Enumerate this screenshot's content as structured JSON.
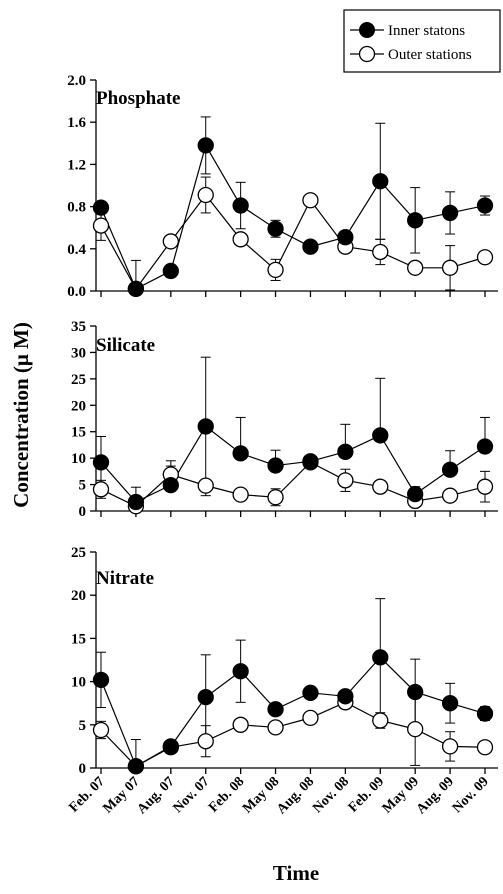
{
  "figure": {
    "ylabel": "Concentration (μ M)",
    "xlabel": "Time"
  },
  "legend": {
    "inner_label": "Inner statons",
    "outer_label": "Outer stations"
  },
  "chart_data": [
    {
      "type": "line",
      "title": "Phosphate",
      "categories": [
        "Feb. 07",
        "May 07",
        "Aug. 07",
        "Nov. 07",
        "Feb. 08",
        "May 08",
        "Aug. 08",
        "Nov. 08",
        "Feb. 09",
        "May 09",
        "Aug. 09",
        "Nov. 09"
      ],
      "ylim": [
        0,
        2.0
      ],
      "yticks": [
        "0.0",
        "0.4",
        "0.8",
        "1.2",
        "1.6",
        "2.0"
      ],
      "series": [
        {
          "name": "Inner statons",
          "fill": "#000000",
          "values": [
            0.79,
            0.02,
            0.19,
            1.38,
            0.81,
            0.59,
            0.42,
            0.51,
            1.04,
            0.67,
            0.74,
            0.81
          ],
          "err": [
            0,
            0,
            0,
            0.27,
            0.22,
            0.08,
            0,
            0.04,
            0.55,
            0.31,
            0.2,
            0.09
          ]
        },
        {
          "name": "Outer stations",
          "fill": "#ffffff",
          "values": [
            0.62,
            0.02,
            0.47,
            0.91,
            0.49,
            0.2,
            0.86,
            0.42,
            0.37,
            0.22,
            0.22,
            0.32
          ],
          "err": [
            0.14,
            0.27,
            0,
            0.17,
            0,
            0.1,
            0,
            0,
            0.12,
            0,
            0.21,
            0
          ]
        }
      ]
    },
    {
      "type": "line",
      "title": "Silicate",
      "categories": [
        "Feb. 07",
        "May 07",
        "Aug. 07",
        "Nov. 07",
        "Feb. 08",
        "May 08",
        "Aug. 08",
        "Nov. 08",
        "Feb. 09",
        "May 09",
        "Aug. 09",
        "Nov. 09"
      ],
      "ylim": [
        0,
        35
      ],
      "yticks": [
        "0",
        "5",
        "10",
        "15",
        "20",
        "25",
        "30",
        "35"
      ],
      "series": [
        {
          "name": "Inner statons",
          "fill": "#000000",
          "values": [
            9.2,
            1.7,
            4.9,
            16.0,
            10.9,
            8.6,
            9.4,
            11.2,
            14.3,
            3.2,
            7.8,
            12.2
          ],
          "err": [
            4.9,
            2.8,
            3.6,
            13.1,
            6.8,
            2.9,
            0,
            5.2,
            10.8,
            1.4,
            3.6,
            5.5
          ],
          "errlo": [
            4.9,
            0,
            0,
            13.1,
            0,
            0,
            0,
            0,
            0,
            0,
            0,
            0
          ]
        },
        {
          "name": "Outer stations",
          "fill": "#ffffff",
          "values": [
            4.1,
            0.9,
            6.9,
            4.8,
            3.1,
            2.6,
            9.2,
            5.8,
            4.6,
            1.9,
            2.9,
            4.6
          ],
          "err": [
            1.7,
            0,
            2.6,
            0,
            0,
            1.6,
            0,
            2.1,
            0,
            0,
            0,
            2.9
          ]
        }
      ]
    },
    {
      "type": "line",
      "title": "Nitrate",
      "categories": [
        "Feb. 07",
        "May 07",
        "Aug. 07",
        "Nov. 07",
        "Feb. 08",
        "May 08",
        "Aug. 08",
        "Nov. 08",
        "Feb. 09",
        "May 09",
        "Aug. 09",
        "Nov. 09"
      ],
      "ylim": [
        0,
        25
      ],
      "yticks": [
        "0",
        "5",
        "10",
        "15",
        "20",
        "25"
      ],
      "series": [
        {
          "name": "Inner statons",
          "fill": "#000000",
          "values": [
            10.2,
            0.2,
            2.5,
            8.2,
            11.2,
            6.8,
            8.7,
            8.3,
            12.8,
            8.8,
            7.5,
            6.3
          ],
          "err": [
            3.2,
            0,
            0,
            4.9,
            3.6,
            0,
            0,
            0,
            6.8,
            3.8,
            2.3,
            0.8
          ]
        },
        {
          "name": "Outer stations",
          "fill": "#ffffff",
          "values": [
            4.4,
            0.2,
            2.4,
            3.1,
            5.0,
            4.7,
            5.8,
            7.6,
            5.5,
            4.5,
            2.5,
            2.4
          ],
          "err": [
            1.0,
            3.1,
            0,
            1.8,
            0,
            0,
            0,
            0,
            0.9,
            4.2,
            1.7,
            0
          ]
        }
      ]
    }
  ]
}
